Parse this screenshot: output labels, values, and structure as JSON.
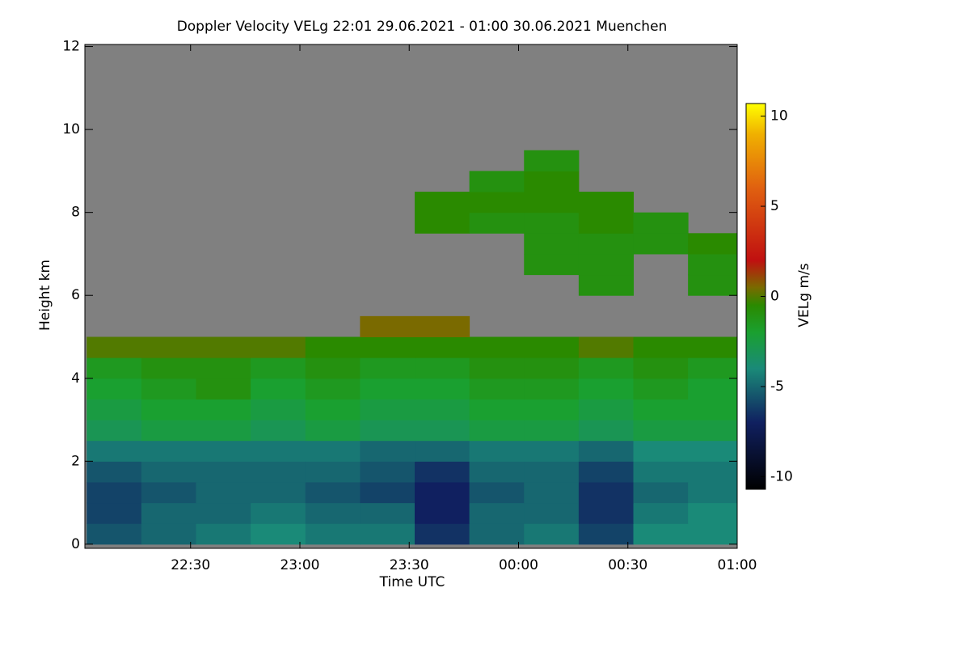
{
  "chart_data": {
    "type": "heatmap",
    "title": "Doppler Velocity VELg   22:01 29.06.2021 - 01:00 30.06.2021 Muenchen",
    "x_label": "Time UTC",
    "y_label": "Height km",
    "colorbar_label": "VELg m/s",
    "x": [
      22.15,
      22.4,
      22.65,
      22.9,
      23.15,
      23.4,
      23.65,
      23.9,
      24.15,
      24.4,
      24.65,
      24.9
    ],
    "y": [
      0.25,
      0.75,
      1.25,
      1.75,
      2.25,
      2.75,
      3.25,
      3.75,
      4.25,
      4.75,
      5.25,
      5.75,
      6.25,
      6.75,
      7.25,
      7.75,
      8.25,
      8.75,
      9.25,
      9.75
    ],
    "z": [
      [
        -5.5,
        -5,
        -4.5,
        -4,
        -4.5,
        -4.5,
        -6.5,
        -5,
        -4.5,
        -6,
        -4,
        -4
      ],
      [
        -6,
        -5,
        -5,
        -4.5,
        -5,
        -5,
        -7,
        -5,
        -5,
        -6.5,
        -4.5,
        -4
      ],
      [
        -6,
        -5.5,
        -5,
        -5,
        -5.5,
        -6,
        -7,
        -5.5,
        -5,
        -6.5,
        -5,
        -4.5
      ],
      [
        -5.5,
        -5,
        -5,
        -5,
        -5,
        -5.5,
        -6.5,
        -5,
        -5,
        -6,
        -4.5,
        -4.5
      ],
      [
        -4.5,
        -4.5,
        -4.5,
        -4.5,
        -4.5,
        -5,
        -5,
        -4.5,
        -4.5,
        -5,
        -4,
        -4
      ],
      [
        -3,
        -2.5,
        -2.5,
        -3,
        -2.5,
        -3,
        -3,
        -2.5,
        -2.5,
        -3,
        -2.5,
        -2.5
      ],
      [
        -2.5,
        -2,
        -2,
        -2.5,
        -2,
        -2.5,
        -2.5,
        -2,
        -2,
        -2.5,
        -2,
        -2
      ],
      [
        -2,
        -1.5,
        -1,
        -2,
        -1.5,
        -2,
        -2,
        -1.5,
        -1.5,
        -2,
        -1.5,
        -2
      ],
      [
        -1.5,
        -1,
        -1,
        -1.5,
        -1,
        -1.5,
        -1.5,
        -1,
        -1,
        -1.5,
        -1,
        -1.5
      ],
      [
        0,
        0,
        0,
        0,
        -0.5,
        -0.5,
        -0.5,
        -0.5,
        -0.5,
        0,
        -0.5,
        -0.5
      ],
      [
        null,
        null,
        null,
        null,
        null,
        0.5,
        0.5,
        null,
        null,
        null,
        null,
        null
      ],
      [
        null,
        null,
        null,
        null,
        null,
        null,
        null,
        null,
        null,
        null,
        null,
        null
      ],
      [
        null,
        null,
        null,
        null,
        null,
        null,
        null,
        null,
        null,
        -1,
        null,
        -1
      ],
      [
        null,
        null,
        null,
        null,
        null,
        null,
        null,
        null,
        -1,
        -1,
        null,
        -1
      ],
      [
        null,
        null,
        null,
        null,
        null,
        null,
        null,
        null,
        -1,
        -1,
        -1,
        -0.5
      ],
      [
        null,
        null,
        null,
        null,
        null,
        null,
        -0.5,
        -1,
        -1,
        -0.5,
        -1,
        null
      ],
      [
        null,
        null,
        null,
        null,
        null,
        null,
        -0.5,
        -0.5,
        -0.5,
        -0.5,
        null,
        null
      ],
      [
        null,
        null,
        null,
        null,
        null,
        null,
        null,
        -1,
        -0.5,
        null,
        null,
        null
      ],
      [
        null,
        null,
        null,
        null,
        null,
        null,
        null,
        null,
        -1,
        null,
        null,
        null
      ],
      [
        null,
        null,
        null,
        null,
        null,
        null,
        null,
        null,
        null,
        null,
        null,
        null
      ]
    ],
    "xlim": [
      22.0167,
      25.0
    ],
    "xticks": [
      {
        "value": 22.5,
        "label": "22:30"
      },
      {
        "value": 23.0,
        "label": "23:00"
      },
      {
        "value": 23.5,
        "label": "23:30"
      },
      {
        "value": 24.0,
        "label": "00:00"
      },
      {
        "value": 24.5,
        "label": "00:30"
      },
      {
        "value": 25.0,
        "label": "01:00"
      }
    ],
    "ylim": [
      -0.1,
      12.05
    ],
    "yticks": [
      0,
      2,
      4,
      6,
      8,
      10,
      12
    ],
    "clim": [
      -10.7,
      10.7
    ],
    "cticks": [
      -10,
      -5,
      0,
      5,
      10
    ],
    "nan_color": "#808080",
    "colorscale": [
      [
        -10.7,
        "#000000"
      ],
      [
        -7,
        "#102060"
      ],
      [
        -4,
        "#1a8a78"
      ],
      [
        -2,
        "#1aa030"
      ],
      [
        -0.5,
        "#2a8a00"
      ],
      [
        0.5,
        "#7a6a00"
      ],
      [
        2,
        "#c01010"
      ],
      [
        6,
        "#e06010"
      ],
      [
        9,
        "#f0b000"
      ],
      [
        10.7,
        "#ffff00"
      ]
    ]
  }
}
